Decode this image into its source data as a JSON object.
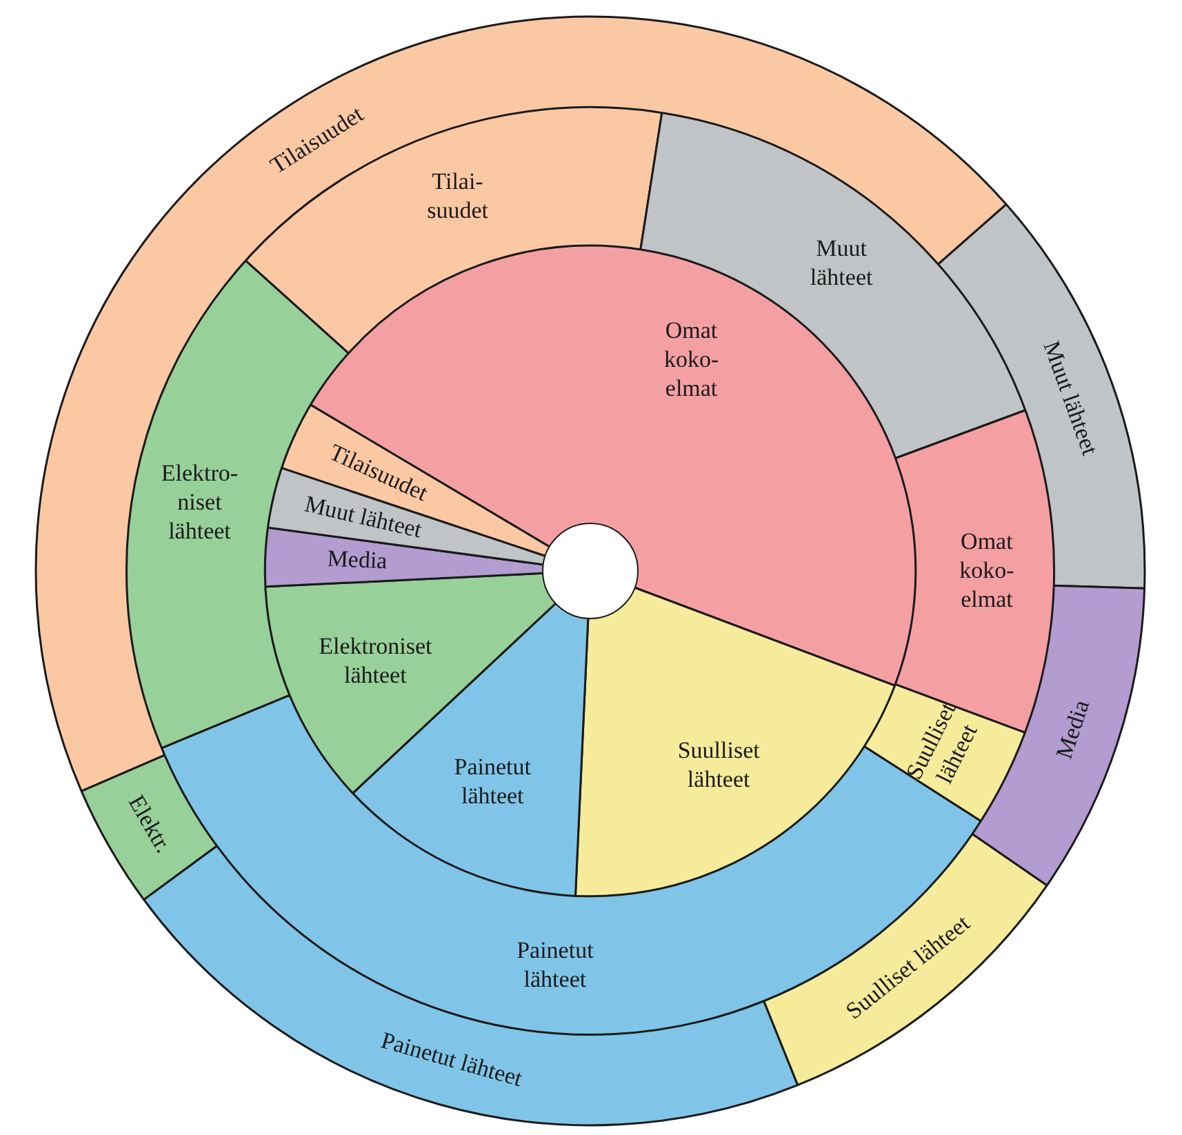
{
  "chart_data": [
    {
      "type": "pie",
      "categories": [
        "Omat\nkoko-\nelmat",
        "Suulliset\nlähteet",
        "Painetut\nlähteet",
        "Elektroniset\nlähteet",
        "Media",
        "Muut lähteet",
        "Tilaisuudet"
      ],
      "values": [
        47.2,
        20,
        12.3,
        11.2,
        2.9,
        3.0,
        3.4
      ],
      "colors": [
        "#f4a0a3",
        "#f5eb9b",
        "#80c5e8",
        "#98d09a",
        "#b39cd0",
        "#c0c4c6",
        "#fbc8a4"
      ]
    },
    {
      "type": "donut",
      "categories": [
        "Tilai-\nsuudet",
        "Muut\nlähteet",
        "Omat\nkoko-\nelmat",
        "Suulliset\nlähteet",
        "Painetut\nlähteet",
        "Elektro-\nniset\nlähteet"
      ],
      "values": [
        15.8,
        16.9,
        11.3,
        3.4,
        34.7,
        17.9
      ],
      "colors": [
        "#fbc8a4",
        "#c0c4c6",
        "#f4a0a3",
        "#f5eb9b",
        "#80c5e8",
        "#98d09a"
      ]
    },
    {
      "type": "donut",
      "categories": [
        "Tilaisuudet",
        "Muut lähteet",
        "Media",
        "Suulliset lähteet",
        "Painetut lähteet",
        "Elektr."
      ],
      "values": [
        45.0,
        12,
        9.1,
        9.3,
        21,
        3.6
      ],
      "colors": [
        "#fbc8a4",
        "#c0c4c6",
        "#b39cd0",
        "#f5eb9b",
        "#80c5e8",
        "#98d09a"
      ]
    }
  ]
}
